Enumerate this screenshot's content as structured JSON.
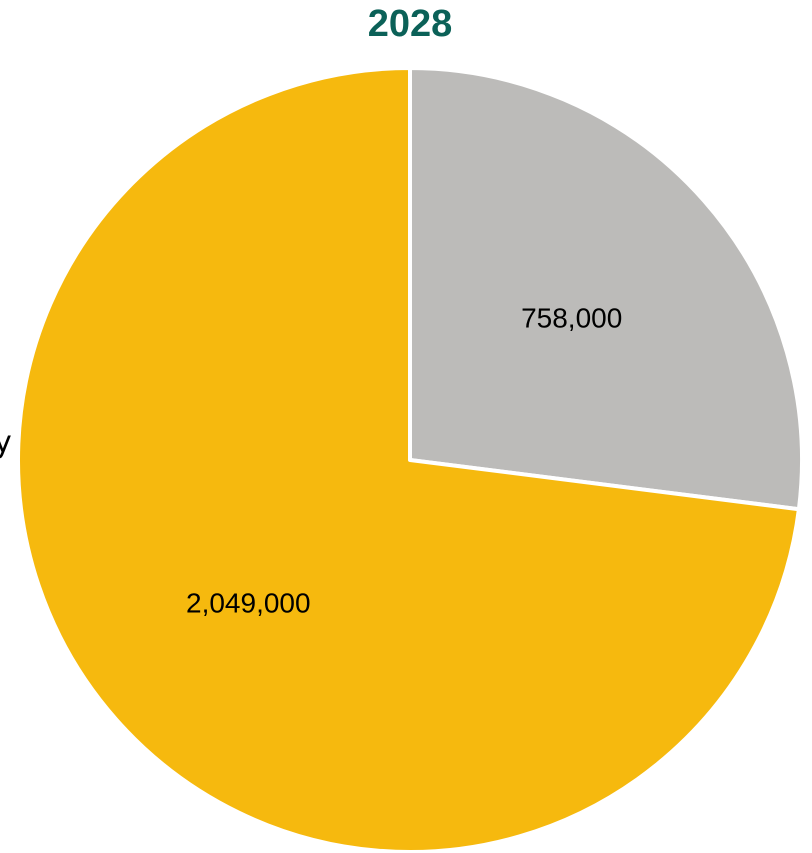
{
  "chart_data": {
    "type": "pie",
    "title": "2028",
    "categories": [
      "",
      ""
    ],
    "values": [
      758000,
      2049000
    ],
    "value_labels": [
      "758,000",
      "2,049,000"
    ],
    "slice_colors": [
      "#bcbbb9",
      "#f6b90e"
    ],
    "start_angle_deg": 0,
    "direction": "clockwise",
    "legend": "none"
  },
  "colors": {
    "title": "#0b6158",
    "slice_border": "#ffffff",
    "label_text": "#000000"
  },
  "fragments": {
    "left_edge_mark": "y"
  }
}
